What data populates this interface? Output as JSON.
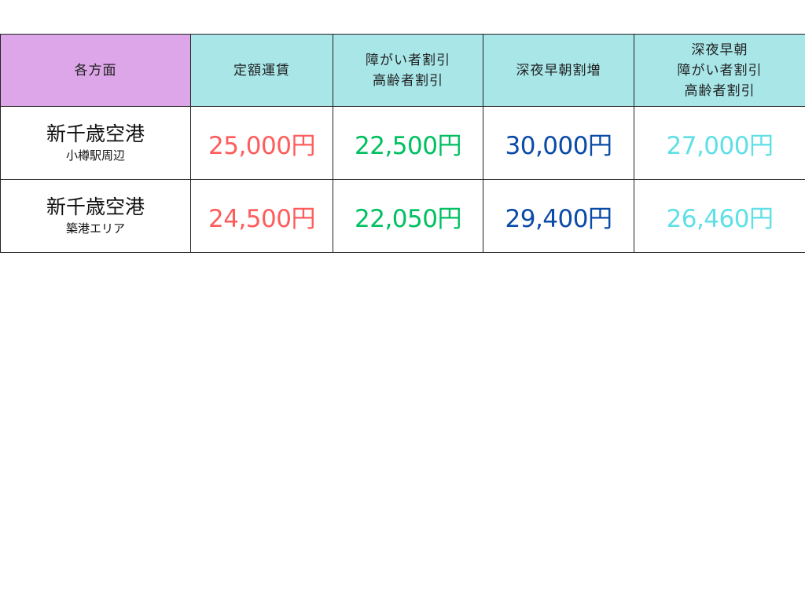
{
  "colors": {
    "header_destination_bg": "#dca6e8",
    "header_bg": "#a8e6e8",
    "fixed_fare": "#ff5c5c",
    "discount": "#00c060",
    "late_night": "#0a4aa8",
    "late_night_discount": "#5ee0e6"
  },
  "headers": [
    {
      "lines": [
        "各方面"
      ]
    },
    {
      "lines": [
        "定額運賃"
      ]
    },
    {
      "lines": [
        "障がい者割引",
        "高齢者割引"
      ]
    },
    {
      "lines": [
        "深夜早朝割増"
      ]
    },
    {
      "lines": [
        "深夜早朝",
        "障がい者割引",
        "高齢者割引"
      ]
    }
  ],
  "rows": [
    {
      "destination": "新千歳空港",
      "area": "小樽駅周辺",
      "prices": [
        "25,000円",
        "22,500円",
        "30,000円",
        "27,000円"
      ]
    },
    {
      "destination": "新千歳空港",
      "area": "築港エリア",
      "prices": [
        "24,500円",
        "22,050円",
        "29,400円",
        "26,460円"
      ]
    }
  ]
}
